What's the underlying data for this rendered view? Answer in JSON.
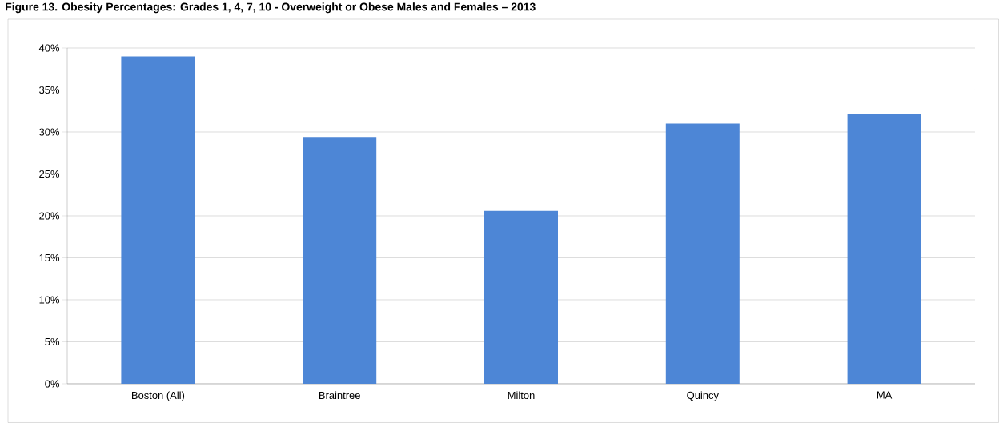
{
  "chart_data": {
    "type": "bar",
    "title": "Figure 13. Obesity Percentages: Grades 1, 4, 7, 10 - Overweight or Obese Males and Females – 2013",
    "categories": [
      "Boston (All)",
      "Braintree",
      "Milton",
      "Quincy",
      "MA"
    ],
    "values": [
      39.0,
      29.4,
      20.6,
      31.0,
      32.2
    ],
    "color": "#4d86d6",
    "ylim": [
      0,
      40
    ],
    "yticks": [
      {
        "value": 0,
        "label": "0%"
      },
      {
        "value": 5,
        "label": "5%"
      },
      {
        "value": 10,
        "label": "10%"
      },
      {
        "value": 15,
        "label": "15%"
      },
      {
        "value": 20,
        "label": "20%"
      },
      {
        "value": 25,
        "label": "25%"
      },
      {
        "value": 30,
        "label": "30%"
      },
      {
        "value": 35,
        "label": "35%"
      },
      {
        "value": 40,
        "label": "40%"
      }
    ],
    "grid": "y"
  }
}
